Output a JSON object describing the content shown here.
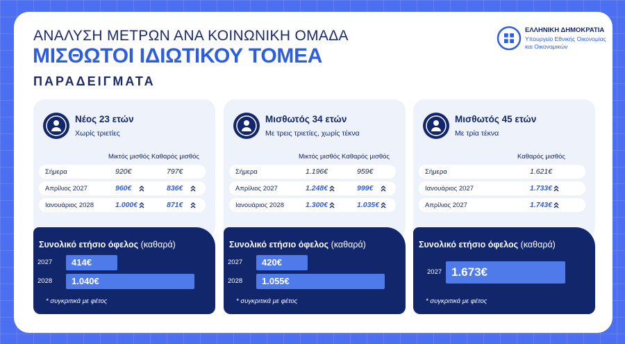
{
  "header": {
    "title": "ΑΝΑΛΥΣΗ ΜΕΤΡΩΝ ΑΝΑ ΚΟΙΝΩΝΙΚΗ ΟΜΑΔΑ",
    "subtitle": "ΜΙΣΘΩΤΟΙ ΙΔΙΩΤΙΚΟΥ ΤΟΜΕΑ",
    "section": "ΠΑΡΑΔΕΙΓΜΑΤΑ"
  },
  "logo": {
    "lines": [
      "ΕΛΛΗΝΙΚΗ ΔΗΜΟΚΡΑΤΙΑ",
      "Υπουργείο Εθνικής Οικονομίας",
      "και Οικονομικών"
    ]
  },
  "cards": [
    {
      "name": "Νέος 23 ετών",
      "description": "Χωρίς τριετίες",
      "columns": [
        "Μικτός μισθός",
        "Καθαρός μισθός"
      ],
      "rows": [
        {
          "label": "Σήμερα",
          "values": [
            "920€",
            "797€"
          ],
          "increase": false
        },
        {
          "label": "Απρίλιος 2027",
          "values": [
            "960€",
            "836€"
          ],
          "increase": true
        },
        {
          "label": "Ιανουάριος 2028",
          "values": [
            "1.000€",
            "871€"
          ],
          "increase": true
        }
      ],
      "benefit": {
        "title": "Συνολικό ετήσιο όφελος",
        "qualifier": "(καθαρά)",
        "bars": [
          {
            "year": "2027",
            "value": 414,
            "label": "414€"
          },
          {
            "year": "2028",
            "value": 1040,
            "label": "1.040€"
          }
        ],
        "note": "* συγκριτικά με φέτος"
      }
    },
    {
      "name": "Μισθωτός 34 ετών",
      "description": "Με τρεις τριετίες, χωρίς τέκνα",
      "columns": [
        "Μικτός μισθός",
        "Καθαρός μισθός"
      ],
      "rows": [
        {
          "label": "Σήμερα",
          "values": [
            "1.196€",
            "959€"
          ],
          "increase": false
        },
        {
          "label": "Απρίλιος 2027",
          "values": [
            "1.248€",
            "999€"
          ],
          "increase": true
        },
        {
          "label": "Ιανουάριος 2028",
          "values": [
            "1.300€",
            "1.035€"
          ],
          "increase": true
        }
      ],
      "benefit": {
        "title": "Συνολικό ετήσιο όφελος",
        "qualifier": "(καθαρά)",
        "bars": [
          {
            "year": "2027",
            "value": 420,
            "label": "420€"
          },
          {
            "year": "2028",
            "value": 1055,
            "label": "1.055€"
          }
        ],
        "note": "* συγκριτικά με φέτος"
      }
    },
    {
      "name": "Μισθωτός 45 ετών",
      "description": "Με τρία τέκνα",
      "columns": [
        "Καθαρός μισθός"
      ],
      "rows": [
        {
          "label": "Σήμερα",
          "values": [
            "1.621€"
          ],
          "increase": false
        },
        {
          "label": "Ιανουάριος 2027",
          "values": [
            "1.733€"
          ],
          "increase": true
        },
        {
          "label": "Απρίλιος 2027",
          "values": [
            "1.743€"
          ],
          "increase": true
        }
      ],
      "benefit": {
        "title": "Συνολικό ετήσιο όφελος",
        "qualifier": "(καθαρά)",
        "bars": [
          {
            "year": "2027",
            "value": 1673,
            "label": "1.673€"
          }
        ],
        "note": "* συγκριτικά με φέτος"
      }
    }
  ]
}
